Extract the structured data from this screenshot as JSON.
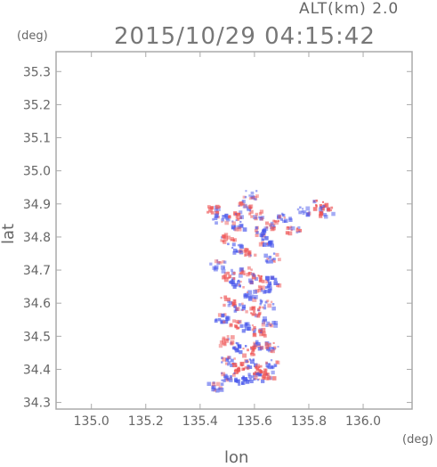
{
  "header": {
    "altitude_label": "ALT(km) 2.0",
    "timestamp": "2015/10/29 04:15:42"
  },
  "axes": {
    "y_unit": "(deg)",
    "x_unit": "(deg)",
    "y_title": "lat",
    "x_title": "lon"
  },
  "chart_data": {
    "type": "heatmap",
    "title": "2015/10/29 04:15:42",
    "subtitle": "ALT(km) 2.0",
    "xlabel": "lon",
    "ylabel": "lat",
    "x_unit": "(deg)",
    "y_unit": "(deg)",
    "xlim": [
      134.87,
      136.18
    ],
    "ylim": [
      34.28,
      35.36
    ],
    "x_ticks": [
      135.0,
      135.2,
      135.4,
      135.6,
      135.8,
      136.0
    ],
    "x_tick_labels": [
      "135.0",
      "135.2",
      "135.4",
      "135.6",
      "135.8",
      "136.0"
    ],
    "y_ticks": [
      34.3,
      34.4,
      34.5,
      34.6,
      34.7,
      34.8,
      34.9,
      35.0,
      35.1,
      35.2,
      35.3
    ],
    "y_tick_labels": [
      "34.3",
      "34.4",
      "34.5",
      "34.6",
      "34.7",
      "34.8",
      "34.9",
      "35.0",
      "35.1",
      "35.2",
      "35.3"
    ],
    "grid": false,
    "colors": {
      "positive": "#ee4444",
      "negative": "#4455ee",
      "neutral": "#dddddd"
    },
    "patches": [
      {
        "lon": 135.45,
        "lat": 34.89,
        "v": 0.5
      },
      {
        "lon": 135.47,
        "lat": 34.86,
        "v": -0.4
      },
      {
        "lon": 135.52,
        "lat": 34.87,
        "v": 0.6
      },
      {
        "lon": 135.54,
        "lat": 34.84,
        "v": -0.5
      },
      {
        "lon": 135.56,
        "lat": 34.9,
        "v": 0.3
      },
      {
        "lon": 135.58,
        "lat": 34.93,
        "v": -0.3
      },
      {
        "lon": 135.6,
        "lat": 34.87,
        "v": 0.4
      },
      {
        "lon": 135.62,
        "lat": 34.82,
        "v": -0.7
      },
      {
        "lon": 135.64,
        "lat": 34.79,
        "v": -0.6
      },
      {
        "lon": 135.66,
        "lat": 34.84,
        "v": 0.5
      },
      {
        "lon": 135.7,
        "lat": 34.86,
        "v": -0.4
      },
      {
        "lon": 135.74,
        "lat": 34.83,
        "v": 0.6
      },
      {
        "lon": 135.78,
        "lat": 34.88,
        "v": -0.3
      },
      {
        "lon": 135.84,
        "lat": 34.9,
        "v": 0.8
      },
      {
        "lon": 135.86,
        "lat": 34.88,
        "v": 0.6
      },
      {
        "lon": 135.5,
        "lat": 34.8,
        "v": 0.4
      },
      {
        "lon": 135.52,
        "lat": 34.77,
        "v": -0.5
      },
      {
        "lon": 135.58,
        "lat": 34.76,
        "v": 0.3
      },
      {
        "lon": 135.66,
        "lat": 34.74,
        "v": -0.5
      },
      {
        "lon": 135.46,
        "lat": 34.72,
        "v": -0.3
      },
      {
        "lon": 135.5,
        "lat": 34.69,
        "v": 0.5
      },
      {
        "lon": 135.53,
        "lat": 34.66,
        "v": -0.6
      },
      {
        "lon": 135.56,
        "lat": 34.7,
        "v": 0.4
      },
      {
        "lon": 135.6,
        "lat": 34.68,
        "v": 0.7
      },
      {
        "lon": 135.63,
        "lat": 34.65,
        "v": -0.5
      },
      {
        "lon": 135.66,
        "lat": 34.67,
        "v": -0.6
      },
      {
        "lon": 135.58,
        "lat": 34.63,
        "v": -0.4
      },
      {
        "lon": 135.5,
        "lat": 34.61,
        "v": 0.5
      },
      {
        "lon": 135.54,
        "lat": 34.59,
        "v": -0.5
      },
      {
        "lon": 135.6,
        "lat": 34.58,
        "v": 0.6
      },
      {
        "lon": 135.64,
        "lat": 34.6,
        "v": -0.4
      },
      {
        "lon": 135.47,
        "lat": 34.56,
        "v": -0.6
      },
      {
        "lon": 135.52,
        "lat": 34.54,
        "v": 0.4
      },
      {
        "lon": 135.57,
        "lat": 34.53,
        "v": -0.5
      },
      {
        "lon": 135.61,
        "lat": 34.52,
        "v": 0.5
      },
      {
        "lon": 135.65,
        "lat": 34.55,
        "v": -0.3
      },
      {
        "lon": 135.49,
        "lat": 34.49,
        "v": 0.3
      },
      {
        "lon": 135.54,
        "lat": 34.47,
        "v": -0.6
      },
      {
        "lon": 135.58,
        "lat": 34.46,
        "v": 0.5
      },
      {
        "lon": 135.62,
        "lat": 34.48,
        "v": -0.5
      },
      {
        "lon": 135.66,
        "lat": 34.47,
        "v": 0.4
      },
      {
        "lon": 135.5,
        "lat": 34.43,
        "v": -0.5
      },
      {
        "lon": 135.54,
        "lat": 34.41,
        "v": 0.7
      },
      {
        "lon": 135.58,
        "lat": 34.42,
        "v": -0.6
      },
      {
        "lon": 135.62,
        "lat": 34.4,
        "v": 0.6
      },
      {
        "lon": 135.66,
        "lat": 34.42,
        "v": -0.4
      },
      {
        "lon": 135.5,
        "lat": 34.38,
        "v": -0.5
      },
      {
        "lon": 135.55,
        "lat": 34.37,
        "v": -0.7
      },
      {
        "lon": 135.6,
        "lat": 34.38,
        "v": -0.5
      },
      {
        "lon": 135.64,
        "lat": 34.39,
        "v": 0.5
      },
      {
        "lon": 135.45,
        "lat": 34.35,
        "v": -0.4
      }
    ]
  }
}
